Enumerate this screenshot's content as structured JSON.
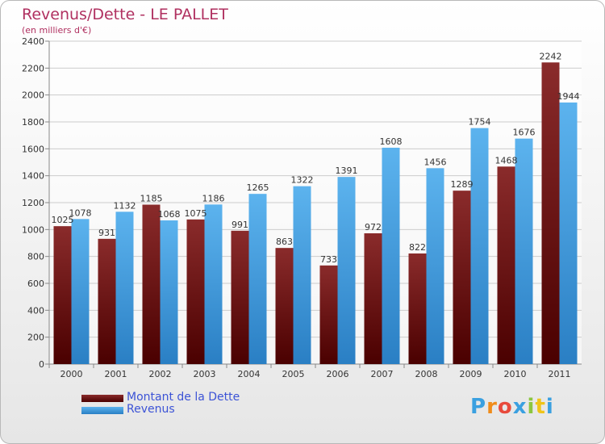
{
  "page": {
    "title": "Revenus/Dette - LE PALLET",
    "subtitle": "(en milliers d'€)"
  },
  "legend": {
    "dette_label": "Montant de la Dette",
    "revenus_label": "Revenus"
  },
  "logo": {
    "letters": [
      "P",
      "r",
      "o",
      "x",
      "i",
      "t",
      "i"
    ],
    "colors": [
      "#3aa0e0",
      "#f08c1a",
      "#e84a3c",
      "#3aa0e0",
      "#8cc63f",
      "#f0c419",
      "#3aa0e0"
    ]
  },
  "colors": {
    "dette_top": "#8a2b2b",
    "dette_bottom": "#4a0000",
    "revenus_top": "#5cb3ee",
    "revenus_bottom": "#2a7fc4",
    "grid": "#cccccc",
    "axis": "#888888"
  },
  "chart_data": {
    "type": "bar",
    "title": "Revenus/Dette - LE PALLET",
    "xlabel": "",
    "ylabel": "(en milliers d'€)",
    "ylim": [
      0,
      2400
    ],
    "yticks": [
      0,
      200,
      400,
      600,
      800,
      1000,
      1200,
      1400,
      1600,
      1800,
      2000,
      2200,
      2400
    ],
    "grid": true,
    "legend_position": "bottom-left",
    "categories": [
      "2000",
      "2001",
      "2002",
      "2003",
      "2004",
      "2005",
      "2006",
      "2007",
      "2008",
      "2009",
      "2010",
      "2011"
    ],
    "series": [
      {
        "name": "Montant de la Dette",
        "values": [
          1025,
          931,
          1185,
          1075,
          991,
          863,
          733,
          972,
          822,
          1289,
          1468,
          2242
        ]
      },
      {
        "name": "Revenus",
        "values": [
          1078,
          1132,
          1068,
          1186,
          1265,
          1322,
          1391,
          1608,
          1456,
          1754,
          1676,
          1944
        ]
      }
    ]
  }
}
